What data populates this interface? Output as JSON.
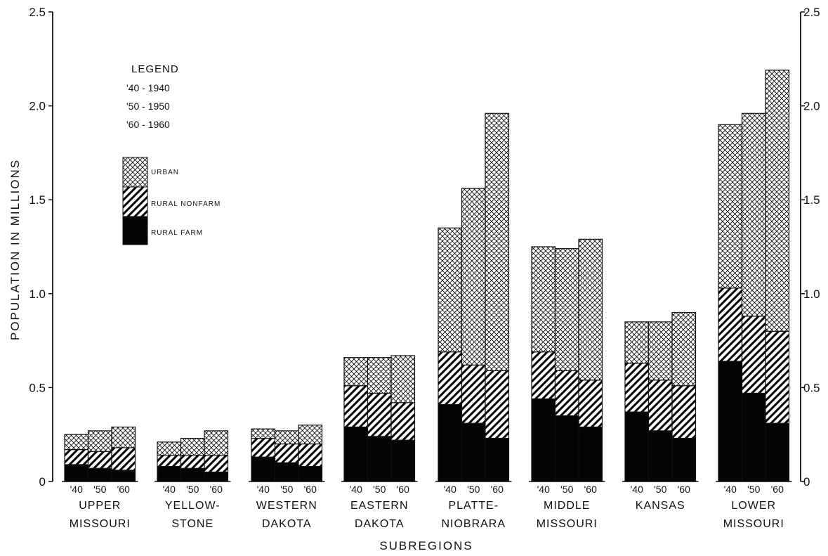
{
  "chart_data": {
    "type": "bar",
    "stacked": true,
    "xlabel": "SUBREGIONS",
    "ylabel": "POPULATION IN MILLIONS",
    "ylim": [
      0,
      2.5
    ],
    "yticks": [
      "0",
      "0.5",
      "1.0",
      "1.5",
      "2.0",
      "2.5"
    ],
    "yticks_right": [
      "0",
      "0.5",
      "1.0",
      "1.5",
      "2.0",
      "2.5"
    ],
    "years": [
      "'40",
      "'50",
      "'60"
    ],
    "categories": [
      {
        "line1": "UPPER",
        "line2": "MISSOURI"
      },
      {
        "line1": "YELLOW-",
        "line2": "STONE"
      },
      {
        "line1": "WESTERN",
        "line2": "DAKOTA"
      },
      {
        "line1": "EASTERN",
        "line2": "DAKOTA"
      },
      {
        "line1": "PLATTE-",
        "line2": "NIOBRARA"
      },
      {
        "line1": "MIDDLE",
        "line2": "MISSOURI"
      },
      {
        "line1": "KANSAS",
        "line2": ""
      },
      {
        "line1": "LOWER",
        "line2": "MISSOURI"
      }
    ],
    "series": [
      {
        "name": "RURAL FARM",
        "pattern": "solid",
        "values": [
          [
            0.09,
            0.07,
            0.06
          ],
          [
            0.08,
            0.07,
            0.05
          ],
          [
            0.13,
            0.1,
            0.08
          ],
          [
            0.29,
            0.24,
            0.22
          ],
          [
            0.41,
            0.31,
            0.23
          ],
          [
            0.44,
            0.35,
            0.29
          ],
          [
            0.37,
            0.27,
            0.23
          ],
          [
            0.64,
            0.47,
            0.31
          ]
        ]
      },
      {
        "name": "RURAL NONFARM",
        "pattern": "diagonal",
        "values": [
          [
            0.08,
            0.09,
            0.12
          ],
          [
            0.06,
            0.07,
            0.09
          ],
          [
            0.1,
            0.1,
            0.12
          ],
          [
            0.22,
            0.23,
            0.2
          ],
          [
            0.28,
            0.31,
            0.36
          ],
          [
            0.25,
            0.24,
            0.25
          ],
          [
            0.26,
            0.27,
            0.28
          ],
          [
            0.39,
            0.41,
            0.49
          ]
        ]
      },
      {
        "name": "URBAN",
        "pattern": "crosshatch",
        "values": [
          [
            0.08,
            0.11,
            0.11
          ],
          [
            0.07,
            0.09,
            0.13
          ],
          [
            0.05,
            0.07,
            0.1
          ],
          [
            0.15,
            0.19,
            0.25
          ],
          [
            0.66,
            0.94,
            1.37
          ],
          [
            0.56,
            0.65,
            0.75
          ],
          [
            0.22,
            0.31,
            0.39
          ],
          [
            0.87,
            1.08,
            1.39
          ]
        ]
      }
    ],
    "legend": {
      "title": "LEGEND",
      "years": [
        "'40 - 1940",
        "'50 - 1950",
        "'60 - 1960"
      ],
      "placement": "top-left",
      "entries": [
        "URBAN",
        "RURAL NONFARM",
        "RURAL FARM"
      ]
    },
    "grid": false
  }
}
